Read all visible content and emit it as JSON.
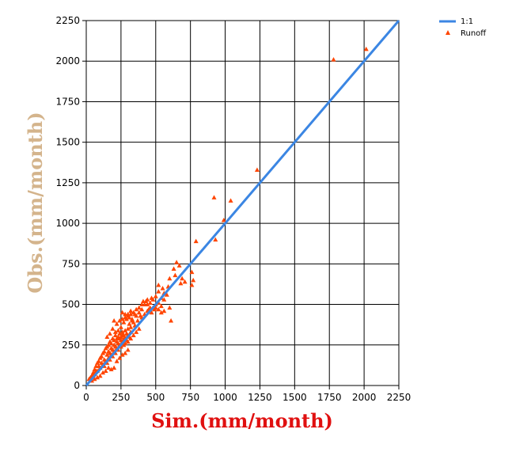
{
  "chart_data": {
    "type": "scatter",
    "xlabel": "Sim.(mm/month)",
    "ylabel": "Obs.(mm/month)",
    "xlim": [
      0,
      2250
    ],
    "ylim": [
      0,
      2250
    ],
    "xticks": [
      "0",
      "250",
      "500",
      "750",
      "1000",
      "1250",
      "1500",
      "1750",
      "2000",
      "2250"
    ],
    "yticks": [
      "0",
      "250",
      "500",
      "750",
      "1000",
      "1250",
      "1500",
      "1750",
      "2000",
      "2250"
    ],
    "grid": true,
    "legend": {
      "placement": "top-right"
    },
    "colors": {
      "line": "#3b86e3",
      "points": "#ff4500",
      "xlabel": "#e01010",
      "ylabel": "#d4b48c"
    },
    "series": [
      {
        "name": "1:1",
        "kind": "line",
        "x": [
          0,
          2250
        ],
        "y": [
          0,
          2250
        ]
      },
      {
        "name": "Runoff",
        "kind": "scatter",
        "points": [
          [
            1780,
            2010
          ],
          [
            2015,
            2075
          ],
          [
            1230,
            1330
          ],
          [
            1040,
            1140
          ],
          [
            920,
            1160
          ],
          [
            990,
            1020
          ],
          [
            930,
            900
          ],
          [
            790,
            890
          ],
          [
            760,
            700
          ],
          [
            770,
            650
          ],
          [
            760,
            620
          ],
          [
            710,
            640
          ],
          [
            690,
            660
          ],
          [
            680,
            630
          ],
          [
            650,
            760
          ],
          [
            670,
            740
          ],
          [
            630,
            720
          ],
          [
            640,
            680
          ],
          [
            600,
            660
          ],
          [
            590,
            610
          ],
          [
            560,
            570
          ],
          [
            580,
            560
          ],
          [
            540,
            540
          ],
          [
            560,
            530
          ],
          [
            520,
            510
          ],
          [
            600,
            480
          ],
          [
            610,
            400
          ],
          [
            540,
            450
          ],
          [
            560,
            460
          ],
          [
            500,
            500
          ],
          [
            490,
            470
          ],
          [
            480,
            480
          ],
          [
            470,
            450
          ],
          [
            460,
            480
          ],
          [
            430,
            520
          ],
          [
            440,
            530
          ],
          [
            420,
            500
          ],
          [
            450,
            470
          ],
          [
            400,
            470
          ],
          [
            390,
            430
          ],
          [
            380,
            450
          ],
          [
            360,
            430
          ],
          [
            370,
            400
          ],
          [
            340,
            390
          ],
          [
            350,
            370
          ],
          [
            330,
            400
          ],
          [
            310,
            380
          ],
          [
            320,
            360
          ],
          [
            300,
            350
          ],
          [
            280,
            340
          ],
          [
            290,
            320
          ],
          [
            270,
            310
          ],
          [
            260,
            330
          ],
          [
            250,
            300
          ],
          [
            240,
            320
          ],
          [
            230,
            300
          ],
          [
            220,
            290
          ],
          [
            210,
            310
          ],
          [
            200,
            280
          ],
          [
            190,
            290
          ],
          [
            180,
            260
          ],
          [
            170,
            270
          ],
          [
            160,
            250
          ],
          [
            150,
            240
          ],
          [
            140,
            230
          ],
          [
            130,
            210
          ],
          [
            120,
            200
          ],
          [
            110,
            180
          ],
          [
            100,
            170
          ],
          [
            90,
            150
          ],
          [
            80,
            140
          ],
          [
            70,
            120
          ],
          [
            60,
            100
          ],
          [
            50,
            80
          ],
          [
            40,
            60
          ],
          [
            30,
            50
          ],
          [
            20,
            40
          ],
          [
            60,
            70
          ],
          [
            80,
            90
          ],
          [
            100,
            110
          ],
          [
            120,
            130
          ],
          [
            140,
            150
          ],
          [
            160,
            170
          ],
          [
            180,
            190
          ],
          [
            200,
            210
          ],
          [
            220,
            230
          ],
          [
            240,
            250
          ],
          [
            260,
            270
          ],
          [
            280,
            290
          ],
          [
            300,
            310
          ],
          [
            320,
            330
          ],
          [
            150,
            190
          ],
          [
            170,
            200
          ],
          [
            190,
            220
          ],
          [
            210,
            240
          ],
          [
            230,
            260
          ],
          [
            250,
            280
          ],
          [
            270,
            290
          ],
          [
            110,
            140
          ],
          [
            130,
            160
          ],
          [
            90,
            120
          ],
          [
            70,
            90
          ],
          [
            50,
            60
          ],
          [
            160,
            210
          ],
          [
            180,
            230
          ],
          [
            200,
            250
          ],
          [
            220,
            270
          ],
          [
            240,
            290
          ],
          [
            260,
            310
          ],
          [
            280,
            260
          ],
          [
            300,
            270
          ],
          [
            320,
            290
          ],
          [
            340,
            310
          ],
          [
            360,
            330
          ],
          [
            380,
            350
          ],
          [
            130,
            120
          ],
          [
            150,
            140
          ],
          [
            170,
            160
          ],
          [
            190,
            180
          ],
          [
            210,
            200
          ],
          [
            230,
            220
          ],
          [
            250,
            240
          ],
          [
            270,
            250
          ],
          [
            290,
            280
          ],
          [
            310,
            300
          ],
          [
            200,
            400
          ],
          [
            220,
            380
          ],
          [
            240,
            400
          ],
          [
            250,
            360
          ],
          [
            230,
            340
          ],
          [
            270,
            390
          ],
          [
            290,
            410
          ],
          [
            310,
            420
          ],
          [
            330,
            410
          ],
          [
            350,
            440
          ],
          [
            400,
            420
          ],
          [
            420,
            440
          ],
          [
            440,
            460
          ],
          [
            470,
            540
          ],
          [
            500,
            550
          ],
          [
            520,
            580
          ],
          [
            550,
            600
          ],
          [
            520,
            620
          ],
          [
            150,
            300
          ],
          [
            170,
            320
          ],
          [
            190,
            350
          ],
          [
            210,
            330
          ],
          [
            180,
            100
          ],
          [
            200,
            110
          ],
          [
            220,
            150
          ],
          [
            240,
            170
          ],
          [
            260,
            190
          ],
          [
            280,
            200
          ],
          [
            300,
            220
          ],
          [
            120,
            80
          ],
          [
            140,
            90
          ],
          [
            160,
            110
          ],
          [
            100,
            60
          ],
          [
            80,
            50
          ],
          [
            60,
            40
          ],
          [
            40,
            30
          ],
          [
            260,
            410
          ],
          [
            280,
            420
          ],
          [
            300,
            440
          ],
          [
            320,
            460
          ],
          [
            440,
            500
          ],
          [
            460,
            510
          ],
          [
            480,
            530
          ],
          [
            500,
            480
          ],
          [
            520,
            470
          ],
          [
            540,
            490
          ],
          [
            380,
            480
          ],
          [
            400,
            500
          ],
          [
            410,
            520
          ],
          [
            360,
            470
          ],
          [
            340,
            450
          ],
          [
            320,
            440
          ],
          [
            300,
            430
          ],
          [
            280,
            440
          ],
          [
            260,
            450
          ]
        ]
      }
    ]
  }
}
